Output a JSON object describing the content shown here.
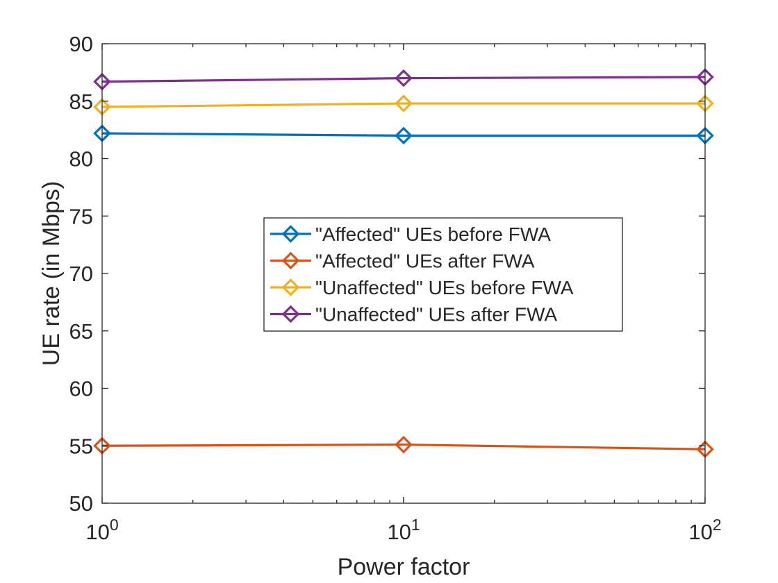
{
  "chart_data": {
    "type": "line",
    "xscale": "log",
    "x": [
      1,
      10,
      100
    ],
    "xlim": [
      1,
      100
    ],
    "ylim": [
      50,
      90
    ],
    "xticks": [
      {
        "base": "10",
        "exp": "0"
      },
      {
        "base": "10",
        "exp": "1"
      },
      {
        "base": "10",
        "exp": "2"
      }
    ],
    "yticks": [
      "50",
      "55",
      "60",
      "65",
      "70",
      "75",
      "80",
      "85",
      "90"
    ],
    "xlabel": "Power factor",
    "ylabel": "UE rate (in Mbps)",
    "grid": false,
    "legend_position": "center",
    "marker": "diamond",
    "series": [
      {
        "name": "\"Affected\" UEs before FWA",
        "color": "#0072BD",
        "values": [
          82.2,
          82.0,
          82.0
        ]
      },
      {
        "name": "\"Affected\" UEs after FWA",
        "color": "#D95319",
        "values": [
          55.0,
          55.1,
          54.7
        ]
      },
      {
        "name": "\"Unaffected\" UEs before FWA",
        "color": "#EDB120",
        "values": [
          84.5,
          84.8,
          84.8
        ]
      },
      {
        "name": "\"Unaffected\" UEs after FWA",
        "color": "#7E2F8E",
        "values": [
          86.7,
          87.0,
          87.1
        ]
      }
    ]
  }
}
